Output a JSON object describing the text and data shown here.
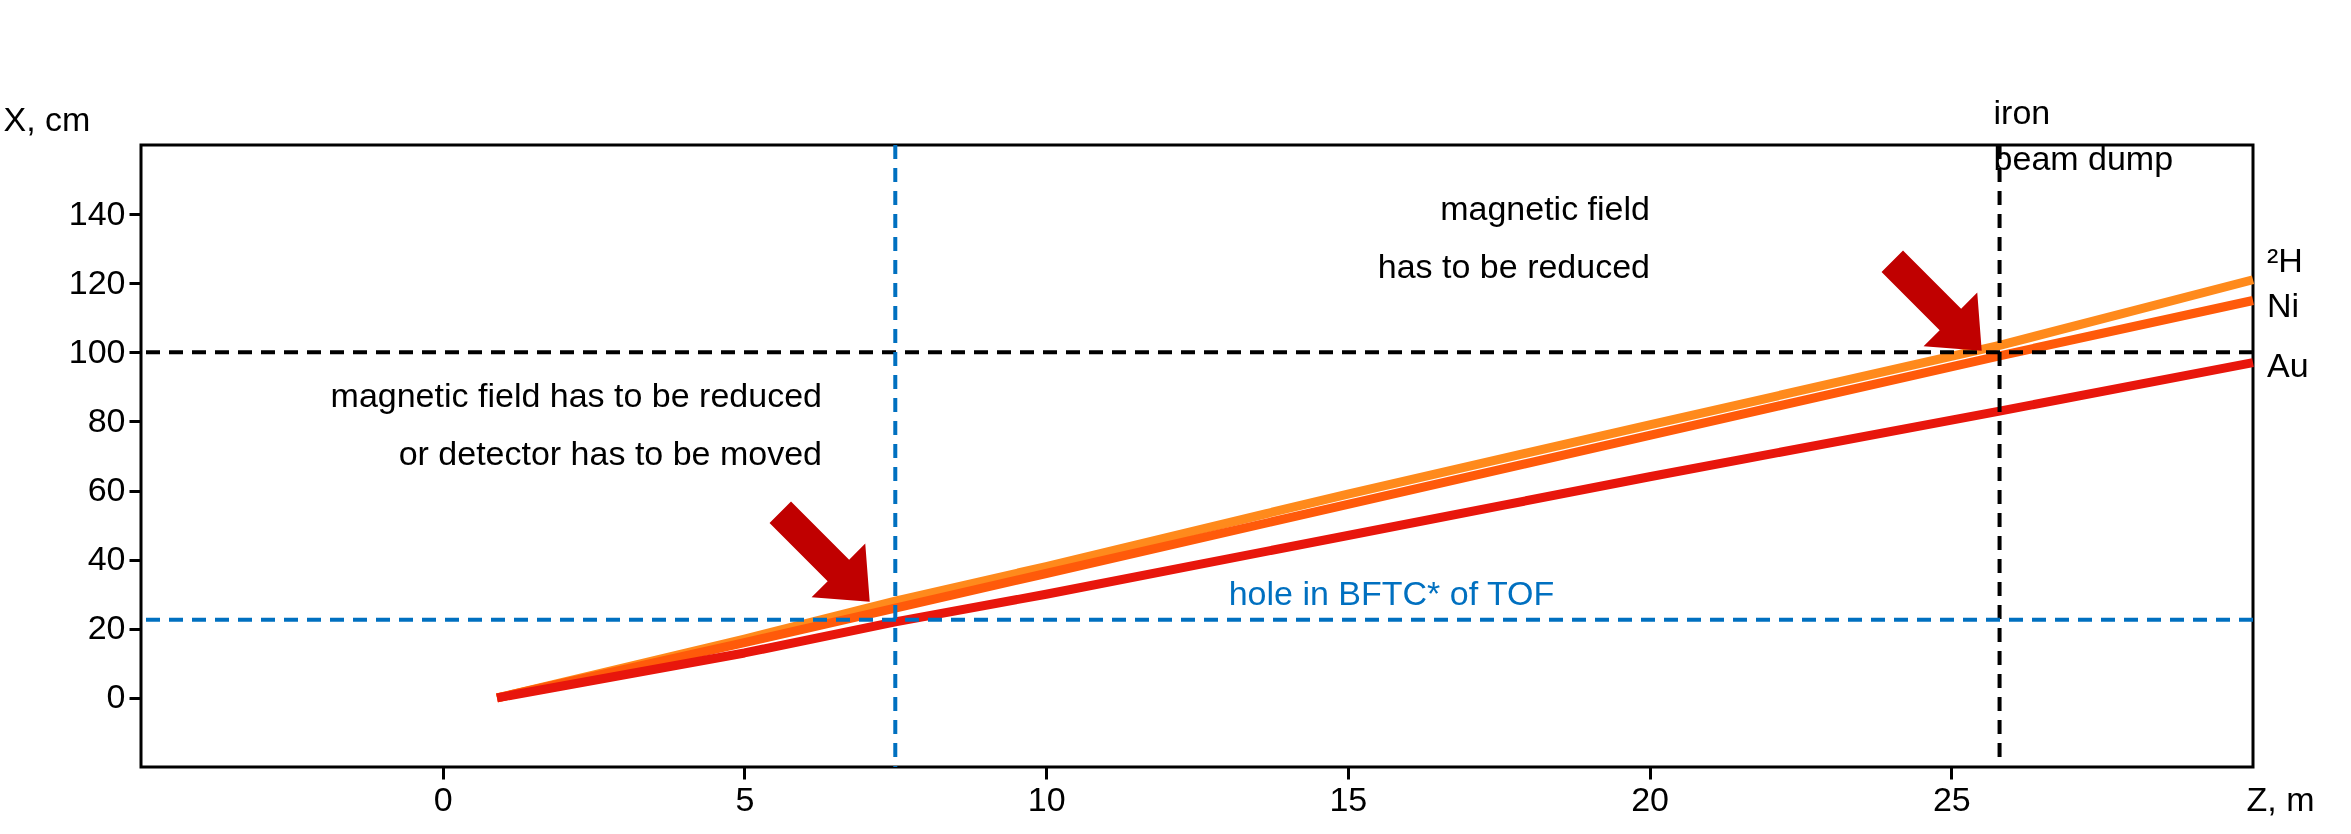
{
  "chart_data": {
    "type": "line",
    "xlabel": "Z, m",
    "ylabel": "X, cm",
    "xlim": [
      -5,
      30
    ],
    "ylim": [
      -20,
      160
    ],
    "xticks": [
      0,
      5,
      10,
      15,
      20,
      25
    ],
    "yticks": [
      0,
      20,
      40,
      60,
      80,
      100,
      120,
      140
    ],
    "grid": false,
    "line_style": "solid",
    "series": [
      {
        "name": "²H",
        "color": "#ff8a1c",
        "x": [
          0.9,
          5,
          7.5,
          10,
          15,
          20,
          25.8,
          30
        ],
        "values": [
          0,
          17,
          28,
          38,
          59,
          79,
          102,
          121
        ]
      },
      {
        "name": "Ni",
        "color": "#ff5a0a",
        "x": [
          0.9,
          5,
          7.5,
          10,
          15,
          20,
          25.8,
          30
        ],
        "values": [
          0,
          16,
          26,
          36,
          56,
          76,
          99,
          115
        ]
      },
      {
        "name": "Au",
        "color": "#e8160c",
        "x": [
          0.9,
          5,
          7.5,
          10,
          15,
          20,
          25.8,
          30
        ],
        "values": [
          0,
          13,
          22,
          30,
          47,
          64,
          83,
          97
        ]
      }
    ],
    "ref_lines": [
      {
        "axis": "y",
        "value": 100,
        "color": "#000000",
        "line_style": "dashed"
      },
      {
        "axis": "x",
        "value": 25.8,
        "label": "iron\nbeam dump",
        "color": "#000000",
        "line_style": "dashed"
      },
      {
        "axis": "y",
        "value": 22.6,
        "label": "hole in BFTC* of TOF",
        "color": "#0070c0",
        "line_style": "dashed"
      },
      {
        "axis": "x",
        "value": 7.5,
        "color": "#0070c0",
        "line_style": "dashed"
      }
    ],
    "annotations": [
      "magnetic field has to be reduced\nor detector has to be moved",
      "magnetic field\nhas to be reduced"
    ]
  }
}
